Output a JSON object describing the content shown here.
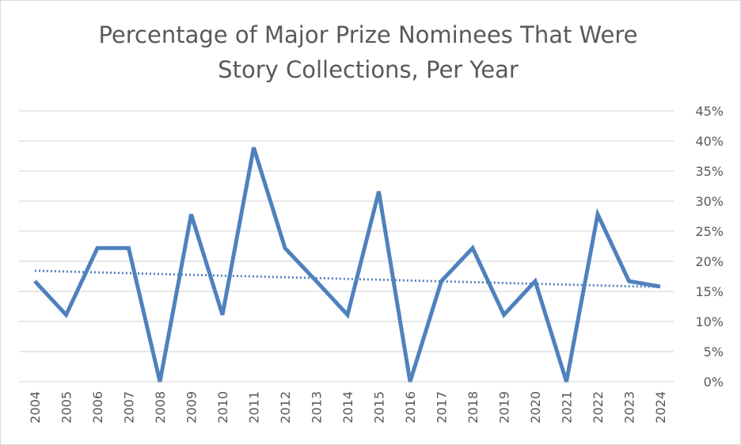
{
  "chart_data": {
    "type": "line",
    "title_lines": [
      "Percentage of Major Prize Nominees That Were",
      "Story Collections, Per Year"
    ],
    "xlabel": "",
    "ylabel": "",
    "categories": [
      "2004",
      "2005",
      "2006",
      "2007",
      "2008",
      "2009",
      "2010",
      "2011",
      "2012",
      "2013",
      "2014",
      "2015",
      "2016",
      "2017",
      "2018",
      "2019",
      "2020",
      "2021",
      "2022",
      "2023",
      "2024"
    ],
    "series": [
      {
        "color": "#4f81bd",
        "values": [
          16.7,
          11.1,
          22.2,
          22.2,
          0,
          27.8,
          11.1,
          38.9,
          22.2,
          16.7,
          11.1,
          31.6,
          0,
          16.7,
          22.2,
          11.1,
          16.7,
          0,
          27.8,
          16.7,
          15.8
        ]
      }
    ],
    "trendline": {
      "type": "linear",
      "style": "dotted",
      "color": "#4f81bd"
    },
    "y_axis": {
      "position": "right",
      "min": 0,
      "max": 45,
      "step": 5,
      "tick_labels": [
        "0%",
        "5%",
        "10%",
        "15%",
        "20%",
        "25%",
        "30%",
        "35%",
        "40%",
        "45%"
      ]
    },
    "x_tick_rotation": "vertical",
    "grid": "horizontal",
    "legend": "none"
  }
}
